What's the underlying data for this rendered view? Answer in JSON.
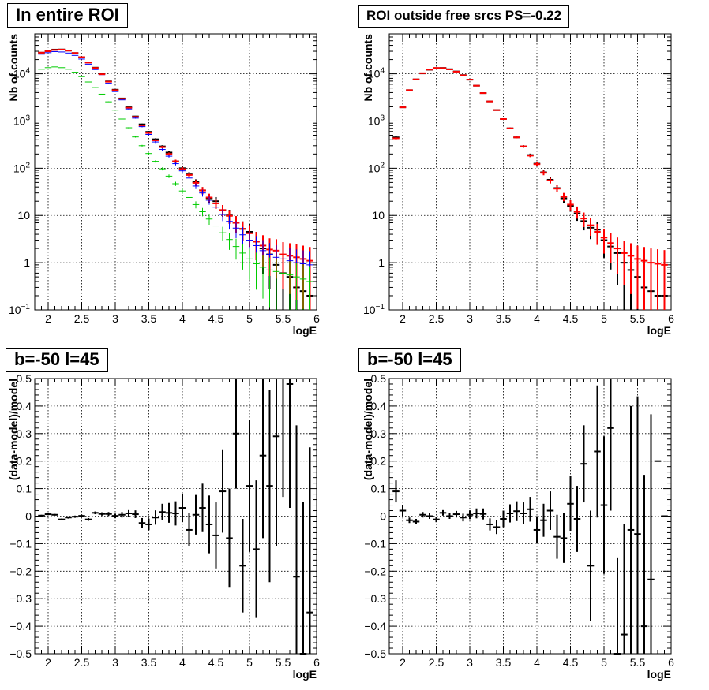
{
  "chart_data": [
    {
      "type": "scatter",
      "title": "In entire ROI",
      "xlabel": "logE",
      "ylabel": "Nb of counts",
      "xlim": [
        1.8,
        6.0
      ],
      "ylim": [
        0.1,
        70000
      ],
      "yscale": "log",
      "grid": true,
      "xticks": [
        "2",
        "2.5",
        "3",
        "3.5",
        "4",
        "4.5",
        "5",
        "5.5",
        "6"
      ],
      "yticks": [
        "10^-1",
        "1",
        "10",
        "10^2",
        "10^3",
        "10^4"
      ],
      "ytick_labels": [
        {
          "base": "10",
          "exp": "−1",
          "value": 0.1
        },
        {
          "base": "1",
          "exp": "",
          "value": 1
        },
        {
          "base": "10",
          "exp": "",
          "value": 10
        },
        {
          "base": "10",
          "exp": "2",
          "value": 100
        },
        {
          "base": "10",
          "exp": "3",
          "value": 1000
        },
        {
          "base": "10",
          "exp": "4",
          "value": 10000
        }
      ],
      "bin_half_width": 0.05,
      "series": [
        {
          "color": "#000000",
          "x": [
            1.9,
            2.0,
            2.1,
            2.2,
            2.3,
            2.4,
            2.5,
            2.6,
            2.7,
            2.8,
            2.9,
            3.0,
            3.1,
            3.2,
            3.3,
            3.4,
            3.5,
            3.6,
            3.7,
            3.8,
            3.9,
            4.0,
            4.1,
            4.2,
            4.3,
            4.4,
            4.5,
            4.6,
            4.7,
            4.8,
            4.9,
            5.0,
            5.1,
            5.2,
            5.3,
            5.4,
            5.5,
            5.6,
            5.7,
            5.8,
            5.9
          ],
          "y": [
            28000,
            30500,
            32500,
            32700,
            31000,
            27500,
            22500,
            17500,
            13500,
            10000,
            6900,
            4600,
            3000,
            1950,
            1250,
            850,
            590,
            410,
            290,
            215,
            140,
            100,
            74,
            51,
            34,
            23,
            20,
            13,
            10,
            7,
            5.2,
            4.5,
            2.8,
            2.0,
            1.5,
            0.9,
            0.6,
            0.5,
            0.3,
            0.25,
            0.2
          ],
          "err_scale": 1.0
        },
        {
          "color": "#ff0000",
          "x": [
            1.9,
            2.0,
            2.1,
            2.2,
            2.3,
            2.4,
            2.5,
            2.6,
            2.7,
            2.8,
            2.9,
            3.0,
            3.1,
            3.2,
            3.3,
            3.4,
            3.5,
            3.6,
            3.7,
            3.8,
            3.9,
            4.0,
            4.1,
            4.2,
            4.3,
            4.4,
            4.5,
            4.6,
            4.7,
            4.8,
            4.9,
            5.0,
            5.1,
            5.2,
            5.3,
            5.4,
            5.5,
            5.6,
            5.7,
            5.8,
            5.9
          ],
          "y": [
            28000,
            30000,
            32000,
            32500,
            31000,
            27500,
            22500,
            17300,
            13300,
            9800,
            6800,
            4500,
            2950,
            1900,
            1220,
            800,
            560,
            390,
            280,
            200,
            140,
            96,
            72,
            49,
            34,
            24,
            18,
            13,
            9.8,
            7.0,
            5.2,
            4.2,
            2.8,
            2.3,
            1.9,
            1.8,
            1.5,
            1.4,
            1.3,
            1.2,
            1.1
          ],
          "err_scale": 1.0
        },
        {
          "color": "#0000ff",
          "x": [
            1.9,
            2.0,
            2.1,
            2.2,
            2.3,
            2.4,
            2.5,
            2.6,
            2.7,
            2.8,
            2.9,
            3.0,
            3.1,
            3.2,
            3.3,
            3.4,
            3.5,
            3.6,
            3.7,
            3.8,
            3.9,
            4.0,
            4.1,
            4.2,
            4.3,
            4.4,
            4.5,
            4.6,
            4.7,
            4.8,
            4.9,
            5.0,
            5.1,
            5.2,
            5.3,
            5.4,
            5.5,
            5.6,
            5.7,
            5.8,
            5.9
          ],
          "y": [
            26000,
            28000,
            29500,
            29000,
            27500,
            24500,
            20500,
            16000,
            12300,
            9000,
            6300,
            4200,
            2800,
            1800,
            1150,
            760,
            520,
            360,
            250,
            180,
            125,
            88,
            62,
            42,
            30,
            21,
            15,
            10.5,
            7.5,
            5.4,
            3.9,
            3.0,
            2.3,
            1.8,
            1.5,
            1.3,
            1.2,
            1.1,
            1.0,
            0.95,
            0.9
          ],
          "err_scale": 0.9
        },
        {
          "color": "#00cc00",
          "x": [
            1.9,
            2.0,
            2.1,
            2.2,
            2.3,
            2.4,
            2.5,
            2.6,
            2.7,
            2.8,
            2.9,
            3.0,
            3.1,
            3.2,
            3.3,
            3.4,
            3.5,
            3.6,
            3.7,
            3.8,
            3.9,
            4.0,
            4.1,
            4.2,
            4.3,
            4.4,
            4.5,
            4.6,
            4.7,
            4.8,
            4.9,
            5.0,
            5.1,
            5.2,
            5.3,
            5.4,
            5.5,
            5.6,
            5.7,
            5.8,
            5.9
          ],
          "y": [
            12500,
            13500,
            14000,
            13500,
            12500,
            10800,
            8700,
            6700,
            5100,
            3700,
            2550,
            1700,
            1100,
            720,
            460,
            300,
            205,
            140,
            97,
            68,
            47,
            33,
            24,
            17,
            12,
            8.4,
            6.0,
            4.3,
            3.1,
            2.2,
            1.6,
            1.2,
            0.95,
            0.8,
            0.7,
            0.65,
            0.6,
            0.55,
            0.5,
            0.45,
            0.4
          ],
          "err_scale": 0.7
        }
      ]
    },
    {
      "type": "scatter",
      "title": "ROI outside free srcs PS=-0.22",
      "xlabel": "logE",
      "ylabel": "Nb of counts",
      "xlim": [
        1.8,
        6.0
      ],
      "ylim": [
        0.1,
        70000
      ],
      "yscale": "log",
      "grid": true,
      "xticks": [
        "2",
        "2.5",
        "3",
        "3.5",
        "4",
        "4.5",
        "5",
        "5.5",
        "6"
      ],
      "ytick_labels": [
        {
          "base": "10",
          "exp": "−1",
          "value": 0.1
        },
        {
          "base": "1",
          "exp": "",
          "value": 1
        },
        {
          "base": "10",
          "exp": "",
          "value": 10
        },
        {
          "base": "10",
          "exp": "2",
          "value": 100
        },
        {
          "base": "10",
          "exp": "3",
          "value": 1000
        },
        {
          "base": "10",
          "exp": "4",
          "value": 10000
        }
      ],
      "bin_half_width": 0.05,
      "series": [
        {
          "color": "#000000",
          "x": [
            1.9,
            2.0,
            2.1,
            2.2,
            2.3,
            2.4,
            2.5,
            2.6,
            2.7,
            2.8,
            2.9,
            3.0,
            3.1,
            3.2,
            3.3,
            3.4,
            3.5,
            3.6,
            3.7,
            3.8,
            3.9,
            4.0,
            4.1,
            4.2,
            4.3,
            4.4,
            4.5,
            4.6,
            4.7,
            4.8,
            4.9,
            5.0,
            5.1,
            5.2,
            5.3,
            5.4,
            5.5,
            5.6,
            5.7,
            5.8,
            5.9
          ],
          "y": [
            450,
            1950,
            4500,
            7600,
            10200,
            12200,
            13200,
            13300,
            12500,
            11200,
            9400,
            7500,
            5600,
            3900,
            2600,
            1700,
            1100,
            700,
            450,
            290,
            190,
            125,
            82,
            57,
            38,
            23,
            16,
            11,
            7.6,
            5.5,
            5.0,
            3.0,
            2.2,
            1.6,
            1.0,
            0.7,
            0.5,
            0.3,
            0.25,
            0.2,
            0.2
          ],
          "err_scale": 1.0
        },
        {
          "color": "#ff0000",
          "x": [
            1.9,
            2.0,
            2.1,
            2.2,
            2.3,
            2.4,
            2.5,
            2.6,
            2.7,
            2.8,
            2.9,
            3.0,
            3.1,
            3.2,
            3.3,
            3.4,
            3.5,
            3.6,
            3.7,
            3.8,
            3.9,
            4.0,
            4.1,
            4.2,
            4.3,
            4.4,
            4.5,
            4.6,
            4.7,
            4.8,
            4.9,
            5.0,
            5.1,
            5.2,
            5.3,
            5.4,
            5.5,
            5.6,
            5.7,
            5.8,
            5.9
          ],
          "y": [
            430,
            1950,
            4500,
            7600,
            10300,
            12300,
            13300,
            13200,
            12400,
            11100,
            9300,
            7500,
            5600,
            3900,
            2600,
            1700,
            1100,
            700,
            450,
            290,
            185,
            122,
            80,
            55,
            37,
            25,
            17,
            12,
            8.6,
            6.2,
            4.5,
            3.4,
            2.6,
            2.0,
            1.6,
            1.4,
            1.2,
            1.1,
            1.0,
            0.95,
            0.9
          ],
          "err_scale": 1.0
        }
      ]
    },
    {
      "type": "scatter",
      "title": "b=-50 l=45",
      "xlabel": "logE",
      "ylabel": "(data-model)/model",
      "xlim": [
        1.8,
        6.0
      ],
      "ylim": [
        -0.5,
        0.5
      ],
      "grid": true,
      "xticks": [
        "2",
        "2.5",
        "3",
        "3.5",
        "4",
        "4.5",
        "5",
        "5.5",
        "6"
      ],
      "yticks": [
        "−0.5",
        "−0.4",
        "−0.3",
        "−0.2",
        "−0.1",
        "0",
        "0.1",
        "0.2",
        "0.3",
        "0.4",
        "0.5"
      ],
      "bin_half_width": 0.05,
      "series": [
        {
          "color": "#000000",
          "x": [
            1.9,
            2.0,
            2.1,
            2.2,
            2.3,
            2.4,
            2.5,
            2.6,
            2.7,
            2.8,
            2.9,
            3.0,
            3.1,
            3.2,
            3.3,
            3.4,
            3.5,
            3.6,
            3.7,
            3.8,
            3.9,
            4.0,
            4.1,
            4.2,
            4.3,
            4.4,
            4.5,
            4.6,
            4.7,
            4.8,
            4.9,
            5.0,
            5.1,
            5.2,
            5.3,
            5.4,
            5.5,
            5.6,
            5.7,
            5.8,
            5.9
          ],
          "y": [
            0.002,
            0.007,
            0.005,
            -0.012,
            -0.005,
            -0.002,
            0.001,
            -0.012,
            0.012,
            0.008,
            0.008,
            0.001,
            0.005,
            0.01,
            0.007,
            -0.025,
            -0.03,
            -0.005,
            0.015,
            0.012,
            0.01,
            0.03,
            -0.05,
            0.005,
            0.03,
            -0.03,
            -0.07,
            0.09,
            -0.08,
            0.3,
            -0.18,
            0.11,
            -0.12,
            0.22,
            0.11,
            0.29,
            0.52,
            0.48,
            -0.22,
            -0.5,
            -0.35
          ],
          "err": [
            0.003,
            0.003,
            0.003,
            0.003,
            0.004,
            0.004,
            0.004,
            0.005,
            0.005,
            0.006,
            0.007,
            0.008,
            0.01,
            0.012,
            0.014,
            0.018,
            0.021,
            0.026,
            0.03,
            0.036,
            0.044,
            0.052,
            0.06,
            0.072,
            0.088,
            0.105,
            0.12,
            0.15,
            0.18,
            0.2,
            0.17,
            0.24,
            0.25,
            0.3,
            0.35,
            0.4,
            0.45,
            0.45,
            0.55,
            0.55,
            0.6
          ]
        }
      ]
    },
    {
      "type": "scatter",
      "title": "b=-50 l=45",
      "xlabel": "logE",
      "ylabel": "(data-model)/model",
      "xlim": [
        1.8,
        6.0
      ],
      "ylim": [
        -0.5,
        0.5
      ],
      "grid": true,
      "xticks": [
        "2",
        "2.5",
        "3",
        "3.5",
        "4",
        "4.5",
        "5",
        "5.5",
        "6"
      ],
      "yticks": [
        "−0.5",
        "−0.4",
        "−0.3",
        "−0.2",
        "−0.1",
        "0",
        "0.1",
        "0.2",
        "0.3",
        "0.4",
        "0.5"
      ],
      "bin_half_width": 0.05,
      "series": [
        {
          "color": "#000000",
          "x": [
            1.9,
            2.0,
            2.1,
            2.2,
            2.3,
            2.4,
            2.5,
            2.6,
            2.7,
            2.8,
            2.9,
            3.0,
            3.1,
            3.2,
            3.3,
            3.4,
            3.5,
            3.6,
            3.7,
            3.8,
            3.9,
            4.0,
            4.1,
            4.2,
            4.3,
            4.4,
            4.5,
            4.6,
            4.7,
            4.8,
            4.9,
            5.0,
            5.1,
            5.2,
            5.3,
            5.4,
            5.5,
            5.6,
            5.7,
            5.8,
            5.9
          ],
          "y": [
            0.09,
            0.02,
            -0.015,
            -0.02,
            0.005,
            0.0,
            -0.012,
            0.012,
            0.0,
            0.007,
            -0.005,
            0.005,
            0.01,
            0.008,
            -0.03,
            -0.04,
            -0.01,
            0.01,
            0.018,
            0.01,
            0.025,
            -0.05,
            -0.015,
            0.02,
            -0.075,
            -0.08,
            0.045,
            -0.01,
            0.19,
            -0.18,
            0.235,
            0.04,
            0.32,
            -0.5,
            -0.43,
            -0.05,
            -0.065,
            -0.4,
            -0.23,
            0.2,
            0.0
          ],
          "err": [
            0.04,
            0.02,
            0.01,
            0.01,
            0.01,
            0.01,
            0.01,
            0.01,
            0.01,
            0.012,
            0.014,
            0.016,
            0.018,
            0.02,
            0.022,
            0.025,
            0.03,
            0.033,
            0.036,
            0.04,
            0.045,
            0.05,
            0.06,
            0.07,
            0.08,
            0.09,
            0.1,
            0.12,
            0.14,
            0.2,
            0.24,
            0.25,
            0.3,
            0.35,
            0.4,
            0.45,
            0.5,
            0.55,
            0.6,
            0.0,
            0.0
          ]
        }
      ]
    }
  ]
}
